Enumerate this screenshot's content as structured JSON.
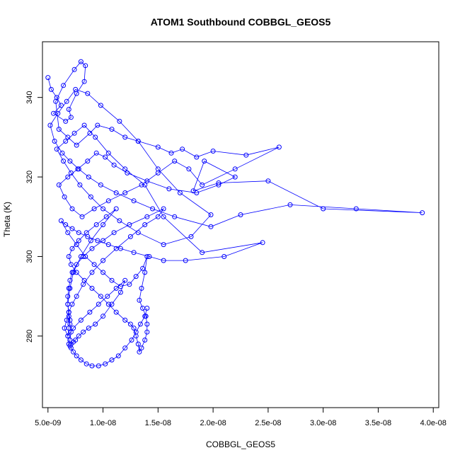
{
  "chart_data": {
    "type": "scatter",
    "title": "ATOM1 Southbound COBBGL_GEOS5",
    "xlabel": "COBBGL_GEOS5",
    "ylabel": "Theta (K)",
    "xlim": [
      4.5e-09,
      4.05e-08
    ],
    "ylim": [
      262,
      354
    ],
    "x_ticks": [
      5e-09,
      1e-08,
      1.5e-08,
      2e-08,
      2.5e-08,
      3e-08,
      3.5e-08,
      4e-08
    ],
    "x_tick_labels": [
      "5.0e-09",
      "1.0e-08",
      "1.5e-08",
      "2.0e-08",
      "2.5e-08",
      "3.0e-08",
      "3.5e-08",
      "4.0e-08"
    ],
    "y_ticks": [
      280,
      300,
      320,
      340
    ],
    "y_tick_labels": [
      "280",
      "300",
      "320",
      "340"
    ],
    "series": [
      {
        "mode": "lines+markers",
        "color": "#0000ff",
        "x": [
          5e-09,
          5.3e-09,
          5.8e-09,
          6.2e-09,
          5.5e-09,
          6.6e-09,
          7.1e-09,
          6.9e-09,
          7.6e-09,
          8.3e-09,
          8.4e-09,
          8e-09,
          7.4e-09,
          6.4e-09,
          5.7e-09,
          6e-09,
          6.8e-09,
          7.6e-09,
          8.8e-09,
          9.5e-09,
          1.08e-08,
          1.2e-08,
          1.32e-08,
          1.5e-08,
          1.62e-08,
          1.72e-08,
          1.85e-08,
          2e-08,
          2.3e-08,
          2.6e-08,
          2.2e-08,
          1.9e-08,
          1.78e-08,
          1.65e-08,
          1.5e-08,
          1.35e-08,
          1.2e-08,
          1.05e-08,
          9.2e-09,
          8.1e-09,
          7.2e-09,
          6.5e-09,
          6e-09,
          6.8e-09,
          7.7e-09,
          8.6e-09,
          9.4e-09,
          1.02e-08,
          1.1e-08,
          1.22e-08,
          1.4e-08,
          1.6e-08,
          1.85e-08,
          2.05e-08,
          2.2e-08,
          1.92e-08,
          1.82e-08,
          2.05e-08,
          2.5e-08,
          3e-08,
          3.9e-08,
          3.3e-08,
          2.7e-08,
          2.25e-08,
          1.98e-08,
          1.65e-08,
          1.45e-08,
          1.28e-08,
          1.12e-08,
          9.8e-09,
          8.7e-09,
          7.8e-09,
          7e-09,
          6.3e-09,
          5.6e-09,
          5.2e-09,
          5.9e-09,
          6.7e-09,
          7.5e-09,
          8.6e-09,
          9.8e-09,
          1.15e-08,
          1.32e-08,
          1.5e-08,
          1.7e-08,
          1.98e-08,
          1.8e-08,
          1.55e-08,
          1.32e-08,
          1.15e-08,
          1e-08,
          8.9e-09,
          7.9e-09,
          7.1e-09,
          6.4e-09,
          5.8e-09,
          6.6e-09,
          7.4e-09,
          8.3e-09,
          9.3e-09,
          1.05e-08,
          1.2e-08,
          1.38e-08,
          1.55e-08,
          1.9e-08,
          2.45e-08,
          2.1e-08,
          1.75e-08,
          1.55e-08,
          1.42e-08,
          1.28e-08,
          1.16e-08,
          1.05e-08,
          9.5e-09,
          8.6e-09,
          7.8e-09,
          7.2e-09,
          6.6e-09,
          6.2e-09,
          6.8e-09,
          7.6e-09,
          8.4e-09,
          9.2e-09,
          1e-08,
          1.08e-08,
          1.16e-08,
          1.24e-08,
          1.3e-08,
          1.36e-08,
          1.4e-08,
          1.38e-08,
          1.35e-08,
          1.33e-08,
          1.36e-08,
          1.39e-08,
          1.4e-08,
          1.4e-08,
          1.38e-08,
          1.35e-08,
          1.33e-08,
          1.32e-08,
          1.3e-08,
          1.28e-08,
          1.25e-08,
          1.2e-08,
          1.12e-08,
          1.05e-08,
          9.8e-09,
          9e-09,
          8.3e-09,
          7.6e-09,
          7.1e-09,
          6.9e-09,
          7.2e-09,
          7.8e-09,
          8.5e-09,
          9.4e-09,
          1.03e-08,
          1.12e-08,
          1e-08,
          8.9e-09,
          8e-09,
          7.3e-09,
          7e-09,
          6.8e-09,
          6.9e-09,
          7e-09,
          7.1e-09,
          7e-09,
          6.9e-09,
          6.8e-09,
          6.9e-09,
          7e-09,
          6.9e-09,
          6.8e-09,
          6.8e-09,
          6.9e-09,
          7e-09,
          7.2e-09,
          7.6e-09,
          8.2e-09,
          9e-09,
          1e-08,
          1.1e-08,
          1.24e-08,
          1.4e-08,
          1.55e-08,
          1.5e-08,
          1.38e-08,
          1.25e-08,
          1.12e-08,
          1e-08,
          9e-09,
          8.2e-09,
          7.6e-09,
          7.2e-09,
          6.9e-09,
          6.7e-09,
          6.5e-09,
          6.8e-09,
          7.3e-09,
          8e-09,
          8.8e-09,
          9.6e-09,
          1.04e-08,
          1.12e-08,
          1.2e-08,
          1.16e-08,
          1.08e-08,
          1e-08,
          9.3e-09,
          8.7e-09,
          8.2e-09,
          7.8e-09,
          7.5e-09,
          7.3e-09,
          7.1e-09,
          7e-09,
          7.1e-09,
          7.3e-09,
          7.6e-09,
          8e-09,
          8.5e-09,
          9e-09,
          9.6e-09,
          1.02e-08,
          1.08e-08,
          1.14e-08,
          1.2e-08,
          1.26e-08,
          1.3e-08,
          1.34e-08,
          1.38e-08,
          1.4e-08
        ],
        "y": [
          345,
          342,
          340,
          338,
          336,
          334,
          335,
          337,
          341,
          344,
          348,
          349,
          347,
          343,
          339,
          332,
          330,
          328,
          331,
          333,
          332,
          330,
          329,
          327.5,
          326,
          327,
          325,
          326.5,
          325.5,
          327.5,
          322,
          318,
          322,
          324,
          321,
          318,
          316,
          314,
          312,
          310,
          312,
          315,
          318,
          320,
          322,
          324,
          326,
          325,
          323,
          321,
          319,
          317,
          316,
          318,
          320,
          324,
          316.5,
          318.5,
          319,
          312,
          311,
          312,
          313,
          310.5,
          307.5,
          310,
          312,
          314,
          316,
          318,
          320,
          322,
          324,
          326,
          329,
          333,
          336,
          339,
          342,
          341,
          338,
          334,
          329,
          322,
          316,
          310.5,
          305,
          303,
          306,
          309,
          312,
          315,
          318,
          321,
          324,
          327,
          329,
          331,
          333,
          330,
          326,
          322,
          318,
          310,
          301,
          303.5,
          300,
          299,
          299,
          300,
          301,
          302,
          303,
          304,
          305,
          306,
          307,
          308,
          309,
          306,
          303,
          300,
          298,
          296,
          294,
          292.5,
          293,
          295,
          297,
          300,
          296,
          292,
          289,
          287,
          285,
          283,
          281,
          279,
          277,
          276,
          278,
          280,
          282,
          283,
          284,
          286,
          288,
          290,
          292,
          294,
          296,
          298,
          300,
          302,
          304,
          306,
          308,
          310,
          312,
          308,
          304,
          300,
          296,
          292,
          288,
          285,
          283,
          281,
          279,
          278,
          280,
          282,
          284,
          286,
          288,
          290,
          292,
          294,
          296,
          298,
          300,
          302,
          304,
          306,
          308,
          310,
          312,
          310,
          308,
          305,
          302,
          299,
          296,
          293,
          290,
          288,
          286,
          284,
          282,
          280,
          282,
          284,
          286,
          288,
          290,
          292,
          294,
          291,
          288,
          285,
          283,
          282,
          281,
          280,
          279,
          278.5,
          278,
          277.5,
          277,
          276,
          275,
          274,
          273,
          272.5,
          272.5,
          273,
          274,
          275,
          277,
          279,
          281,
          283,
          285,
          287
        ]
      }
    ]
  }
}
